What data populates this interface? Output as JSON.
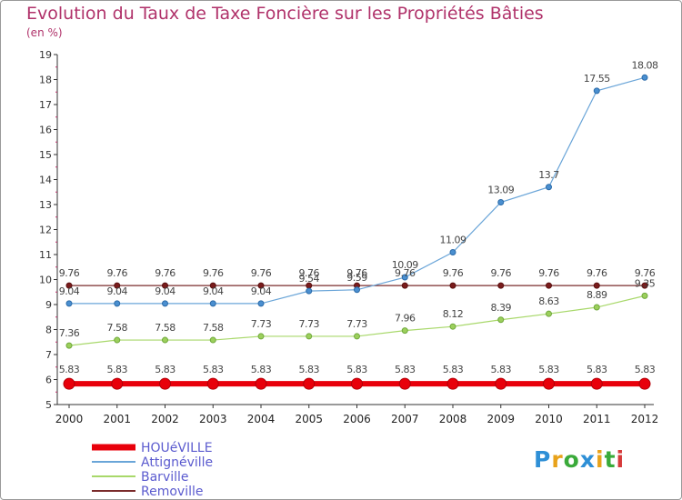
{
  "chart_data": {
    "type": "line",
    "title": "Evolution du Taux de Taxe Foncière sur les Propriétés Bâties",
    "ylabel": "(en %)",
    "xlabel": "",
    "categories": [
      "2000",
      "2001",
      "2002",
      "2003",
      "2004",
      "2005",
      "2006",
      "2007",
      "2008",
      "2009",
      "2010",
      "2011",
      "2012"
    ],
    "ylim": [
      5,
      19
    ],
    "yticks": [
      "5",
      "6",
      "7",
      "8",
      "9",
      "10",
      "11",
      "12",
      "13",
      "14",
      "15",
      "16",
      "17",
      "18",
      "19"
    ],
    "series": [
      {
        "name": "HOUéVILLE",
        "color": "#e8000b",
        "values": [
          5.83,
          5.83,
          5.83,
          5.83,
          5.83,
          5.83,
          5.83,
          5.83,
          5.83,
          5.83,
          5.83,
          5.83,
          5.83
        ],
        "labels": [
          "5.83",
          "5.83",
          "5.83",
          "5.83",
          "5.83",
          "5.83",
          "5.83",
          "5.83",
          "5.83",
          "5.83",
          "5.83",
          "5.83",
          "5.83"
        ]
      },
      {
        "name": "Attignéville",
        "color": "#6aa5d8",
        "values": [
          9.04,
          9.04,
          9.04,
          9.04,
          9.04,
          9.54,
          9.59,
          10.09,
          11.09,
          13.09,
          13.7,
          17.55,
          18.08
        ],
        "labels": [
          "9.04",
          "9.04",
          "9.04",
          "9.04",
          "9.04",
          "9.54",
          "9.59",
          "10.09",
          "11.09",
          "13.09",
          "13.7",
          "17.55",
          "18.08"
        ]
      },
      {
        "name": "Barville",
        "color": "#a8d86a",
        "values": [
          7.36,
          7.58,
          7.58,
          7.58,
          7.73,
          7.73,
          7.73,
          7.96,
          8.12,
          8.39,
          8.63,
          8.89,
          9.35
        ],
        "labels": [
          "7.36",
          "7.58",
          "7.58",
          "7.58",
          "7.73",
          "7.73",
          "7.73",
          "7.96",
          "8.12",
          "8.39",
          "8.63",
          "8.89",
          "9.35"
        ]
      },
      {
        "name": "Removille",
        "color": "#7a2b2b",
        "values": [
          9.76,
          9.76,
          9.76,
          9.76,
          9.76,
          9.76,
          9.76,
          9.76,
          9.76,
          9.76,
          9.76,
          9.76,
          9.76
        ],
        "labels": [
          "9.76",
          "9.76",
          "9.76",
          "9.76",
          "9.76",
          "9.76",
          "9.76",
          "9.76",
          "9.76",
          "9.76",
          "9.76",
          "9.76",
          "9.76"
        ]
      }
    ],
    "legend": "bottom-left",
    "grid": false
  },
  "logo": {
    "text": "Proxiti"
  }
}
